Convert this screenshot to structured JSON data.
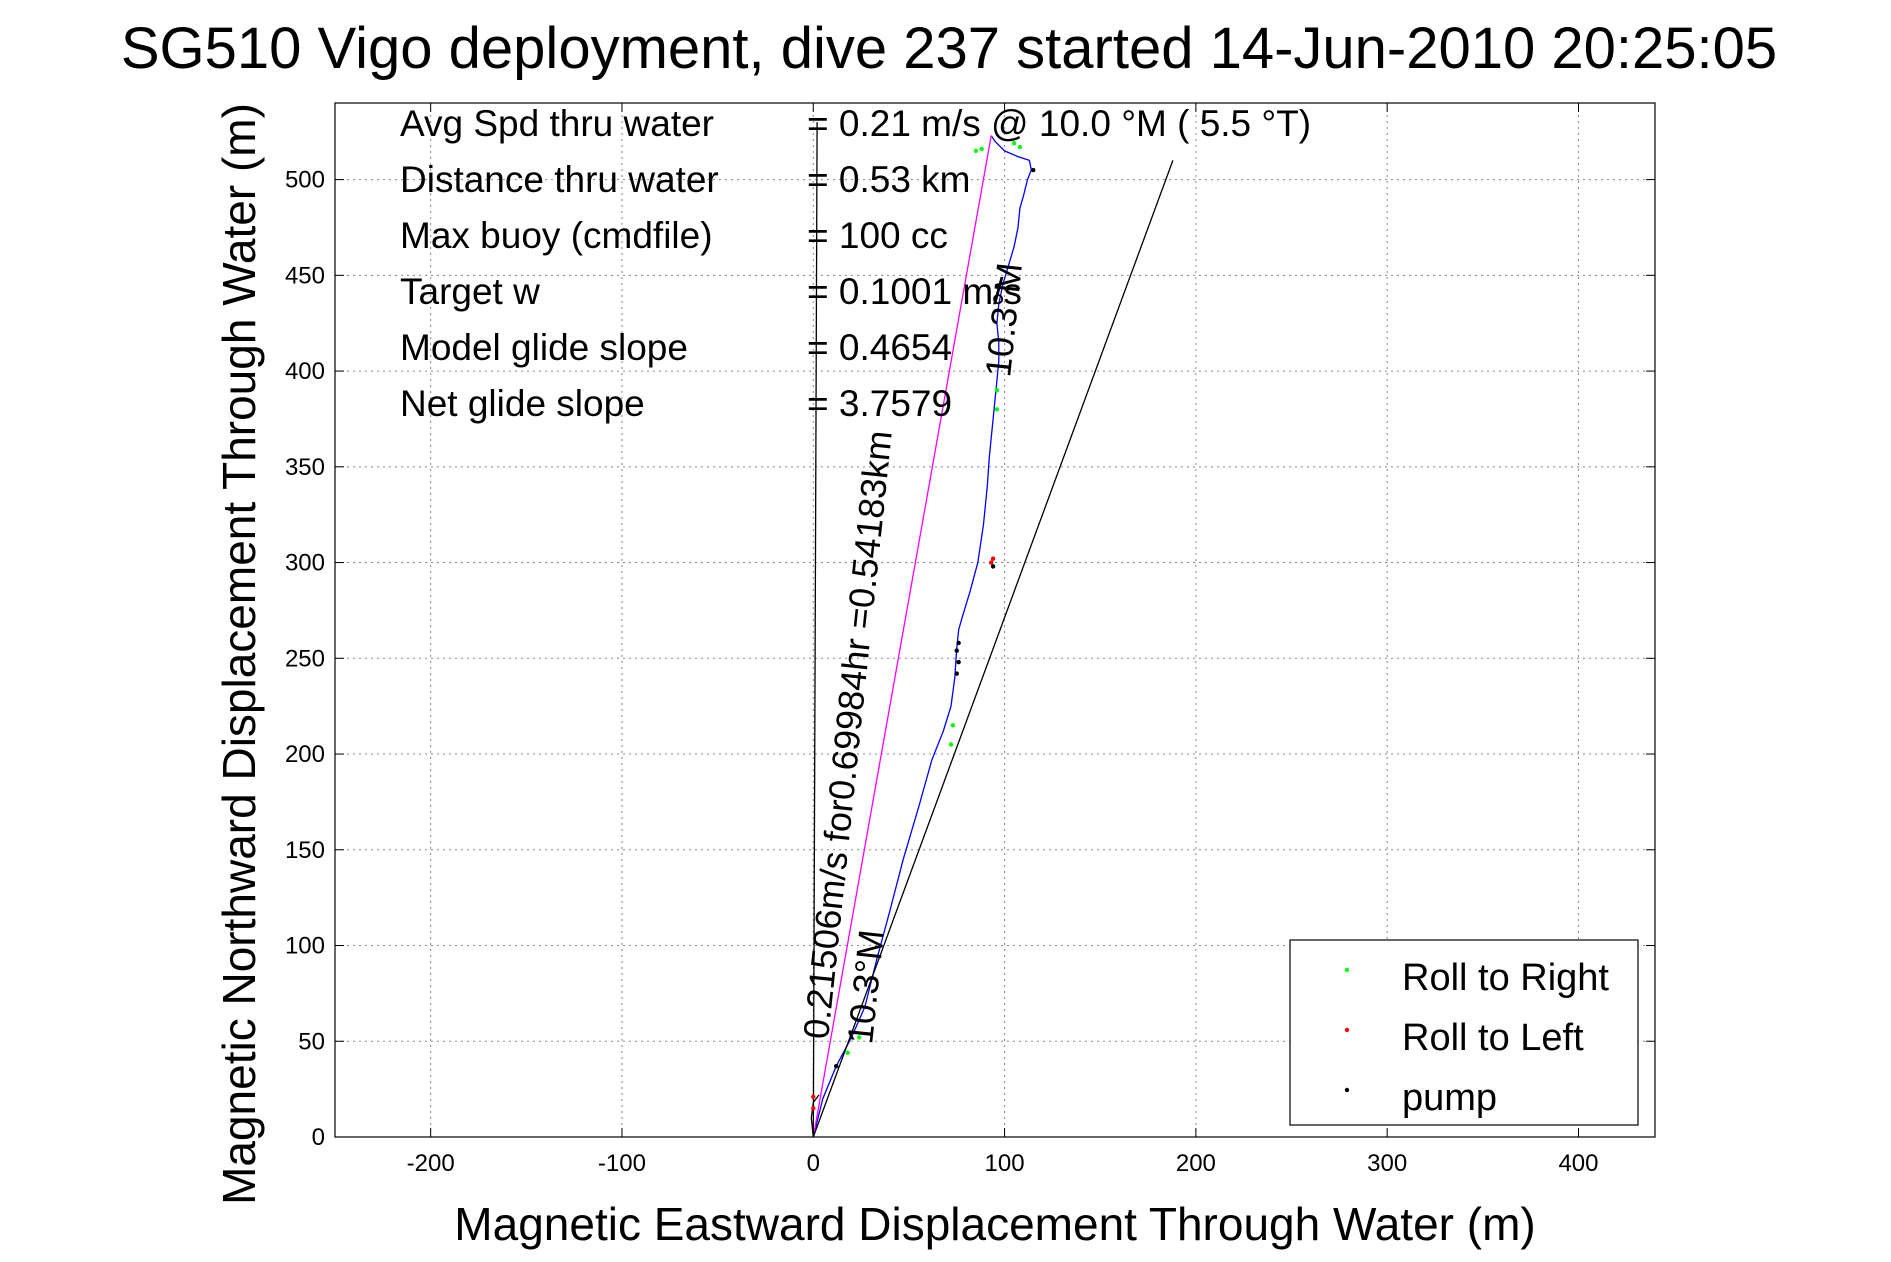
{
  "chart_data": {
    "type": "line",
    "title": "SG510 Vigo deployment, dive 237 started 14-Jun-2010 20:25:05",
    "xlabel": "Magnetic Eastward Displacement Through Water (m)",
    "ylabel": "Magnetic Northward Displacement Through Water (m)",
    "xlim": [
      -250,
      440
    ],
    "ylim": [
      0,
      540
    ],
    "xticks": [
      -200,
      -100,
      0,
      100,
      200,
      300,
      400
    ],
    "yticks": [
      0,
      50,
      100,
      150,
      200,
      250,
      300,
      350,
      400,
      450,
      500
    ],
    "grid": true,
    "legend_placement": "bottom-right",
    "stats": [
      {
        "label": "Avg Spd thru water",
        "value": "=  0.21 m/s @  10.0 °M (  5.5 °T)"
      },
      {
        "label": "Distance thru water",
        "value": "=  0.53 km"
      },
      {
        "label": "Max buoy (cmdfile)",
        "value": "= 100 cc"
      },
      {
        "label": "Target w",
        "value": "= 0.1001 m/s"
      },
      {
        "label": "Model glide slope",
        "value": "= 0.4654"
      },
      {
        "label": "Net glide slope",
        "value": "= 3.7579"
      }
    ],
    "annotations": [
      {
        "text": "0.21506m/s for0.69984hr =0.54183km",
        "x": 0,
        "y": 55
      },
      {
        "text": "10.3°M",
        "x": 20,
        "y": 50
      },
      {
        "text": "10.3°M",
        "x": 100,
        "y": 400
      }
    ],
    "series": [
      {
        "role": "track",
        "color": "#0000ff",
        "x": [
          0,
          5,
          12,
          20,
          27,
          33,
          40,
          47,
          55,
          62,
          68,
          72,
          74,
          75,
          76,
          78,
          82,
          86,
          89,
          91,
          92,
          93,
          94,
          95,
          96,
          97,
          97,
          96,
          97,
          99,
          102,
          105,
          107,
          108,
          110,
          112,
          114,
          113,
          107,
          100,
          95,
          93
        ],
        "y": [
          0,
          20,
          37,
          52,
          68,
          92,
          118,
          145,
          172,
          197,
          212,
          225,
          240,
          255,
          265,
          272,
          285,
          300,
          320,
          340,
          355,
          365,
          375,
          385,
          395,
          405,
          415,
          425,
          435,
          445,
          455,
          465,
          475,
          485,
          492,
          500,
          505,
          510,
          512,
          515,
          520,
          523
        ]
      },
      {
        "role": "heading",
        "color": "#ff00ff",
        "x": [
          0,
          93
        ],
        "y": [
          0,
          523
        ]
      },
      {
        "role": "glide",
        "color": "#000000",
        "x": [
          0,
          188
        ],
        "y": [
          0,
          510
        ]
      },
      {
        "role": "vertical",
        "color": "#000000",
        "x": [
          0,
          2
        ],
        "y": [
          0,
          530
        ]
      },
      {
        "role": "start-curve",
        "color": "#000000",
        "x": [
          0,
          -1,
          0,
          3
        ],
        "y": [
          0,
          10,
          18,
          22
        ]
      }
    ],
    "markers": [
      {
        "name": "Roll to Right",
        "color": "#00ff00",
        "points": [
          [
            18,
            44
          ],
          [
            24,
            52
          ],
          [
            72,
            205
          ],
          [
            73,
            215
          ],
          [
            96,
            380
          ],
          [
            96,
            390
          ],
          [
            105,
            519
          ],
          [
            108,
            517
          ],
          [
            85,
            515
          ],
          [
            88,
            516
          ]
        ]
      },
      {
        "name": "Roll to Left",
        "color": "#ff0000",
        "points": [
          [
            0,
            15
          ],
          [
            0,
            21
          ],
          [
            93,
            300
          ],
          [
            94,
            302
          ]
        ]
      },
      {
        "name": "pump",
        "color": "#000000",
        "points": [
          [
            12,
            37
          ],
          [
            75,
            242
          ],
          [
            76,
            248
          ],
          [
            75,
            254
          ],
          [
            76,
            258
          ],
          [
            94,
            298
          ],
          [
            115,
            505
          ]
        ]
      }
    ]
  }
}
